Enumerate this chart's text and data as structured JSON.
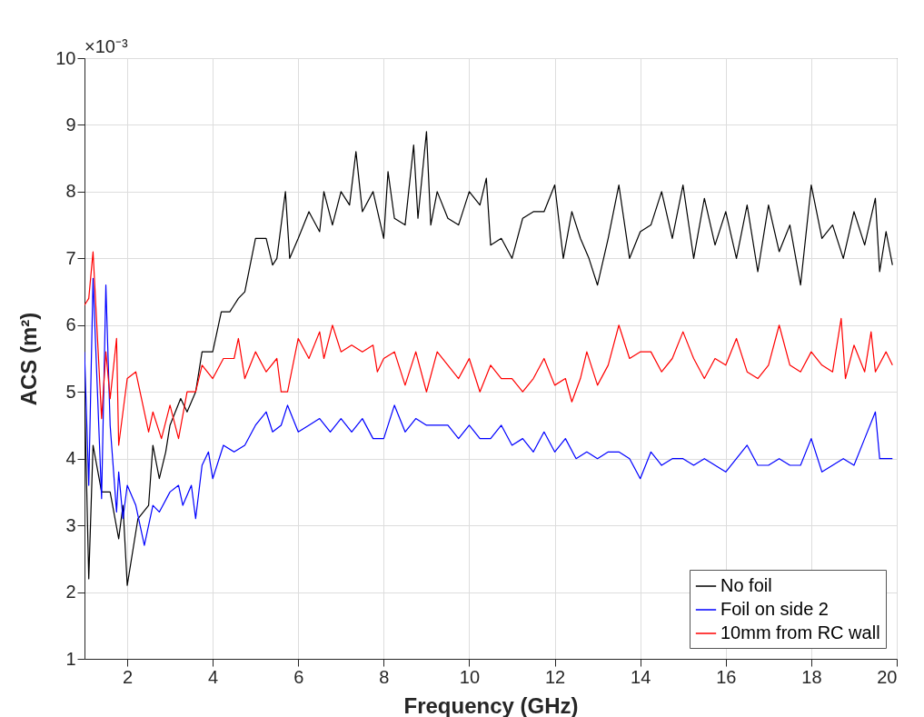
{
  "chart_data": {
    "type": "line",
    "xlabel": "Frequency (GHz)",
    "ylabel": "ACS (m²)",
    "annotations": [
      "×10⁻³"
    ],
    "xlim": [
      1,
      20
    ],
    "xticks": [
      2,
      4,
      6,
      8,
      10,
      12,
      14,
      16,
      18,
      20
    ],
    "ylim": [
      1,
      10
    ],
    "yticks": [
      1,
      2,
      3,
      4,
      5,
      6,
      7,
      8,
      9,
      10
    ],
    "grid": true,
    "legend": "bottom right",
    "line_style": "solid",
    "series": [
      {
        "name": "No foil",
        "color": "#000000",
        "x": [
          1.0,
          1.1,
          1.2,
          1.4,
          1.6,
          1.8,
          1.9,
          2.0,
          2.25,
          2.5,
          2.6,
          2.75,
          2.9,
          3.0,
          3.25,
          3.4,
          3.6,
          3.75,
          4.0,
          4.2,
          4.4,
          4.6,
          4.75,
          5.0,
          5.25,
          5.4,
          5.5,
          5.7,
          5.8,
          6.0,
          6.25,
          6.5,
          6.6,
          6.8,
          7.0,
          7.2,
          7.35,
          7.5,
          7.75,
          8.0,
          8.1,
          8.25,
          8.5,
          8.7,
          8.8,
          9.0,
          9.1,
          9.25,
          9.5,
          9.75,
          10,
          10.25,
          10.4,
          10.5,
          10.75,
          11,
          11.25,
          11.5,
          11.75,
          12,
          12.2,
          12.4,
          12.6,
          12.8,
          13,
          13.25,
          13.5,
          13.75,
          14,
          14.25,
          14.5,
          14.75,
          15,
          15.25,
          15.5,
          15.75,
          16,
          16.25,
          16.5,
          16.75,
          17,
          17.25,
          17.5,
          17.75,
          18,
          18.25,
          18.5,
          18.75,
          19,
          19.25,
          19.5,
          19.6,
          19.75,
          19.9
        ],
        "values": [
          5.0,
          2.2,
          4.2,
          3.5,
          3.5,
          2.8,
          3.3,
          2.1,
          3.1,
          3.3,
          4.2,
          3.7,
          4.1,
          4.5,
          4.9,
          4.7,
          5.0,
          5.6,
          5.6,
          6.2,
          6.2,
          6.4,
          6.5,
          7.3,
          7.3,
          6.9,
          7.0,
          8.0,
          7.0,
          7.3,
          7.7,
          7.4,
          8.0,
          7.5,
          8.0,
          7.8,
          8.6,
          7.7,
          8.0,
          7.3,
          8.3,
          7.6,
          7.5,
          8.7,
          7.6,
          8.9,
          7.5,
          8.0,
          7.6,
          7.5,
          8.0,
          7.8,
          8.2,
          7.2,
          7.3,
          7.0,
          7.6,
          7.7,
          7.7,
          8.1,
          7.0,
          7.7,
          7.3,
          7.0,
          6.6,
          7.3,
          8.1,
          7.0,
          7.4,
          7.5,
          8.0,
          7.3,
          8.1,
          7.0,
          7.9,
          7.2,
          7.7,
          7.0,
          7.8,
          6.8,
          7.8,
          7.1,
          7.5,
          6.6,
          8.1,
          7.3,
          7.5,
          7.0,
          7.7,
          7.2,
          7.9,
          6.8,
          7.4,
          6.9
        ]
      },
      {
        "name": "Foil on side 2",
        "color": "#0000ff",
        "x": [
          1.0,
          1.1,
          1.2,
          1.4,
          1.5,
          1.6,
          1.75,
          1.8,
          1.9,
          2.0,
          2.2,
          2.4,
          2.6,
          2.75,
          3.0,
          3.2,
          3.3,
          3.5,
          3.6,
          3.75,
          3.9,
          4.0,
          4.25,
          4.5,
          4.75,
          5.0,
          5.25,
          5.4,
          5.6,
          5.75,
          6.0,
          6.25,
          6.5,
          6.75,
          7.0,
          7.25,
          7.5,
          7.75,
          8.0,
          8.25,
          8.5,
          8.75,
          9.0,
          9.25,
          9.5,
          9.75,
          10,
          10.25,
          10.5,
          10.75,
          11,
          11.25,
          11.5,
          11.75,
          12,
          12.25,
          12.5,
          12.75,
          13,
          13.25,
          13.5,
          13.75,
          14,
          14.25,
          14.5,
          14.75,
          15,
          15.25,
          15.5,
          15.75,
          16,
          16.25,
          16.5,
          16.75,
          17,
          17.25,
          17.5,
          17.75,
          18,
          18.25,
          18.5,
          18.75,
          19,
          19.25,
          19.5,
          19.6,
          19.75,
          19.9
        ],
        "values": [
          5.6,
          3.6,
          6.7,
          3.4,
          6.6,
          4.5,
          3.2,
          3.8,
          3.1,
          3.6,
          3.3,
          2.7,
          3.3,
          3.2,
          3.5,
          3.6,
          3.3,
          3.6,
          3.1,
          3.9,
          4.1,
          3.7,
          4.2,
          4.1,
          4.2,
          4.5,
          4.7,
          4.4,
          4.5,
          4.8,
          4.4,
          4.5,
          4.6,
          4.4,
          4.6,
          4.4,
          4.6,
          4.3,
          4.3,
          4.8,
          4.4,
          4.6,
          4.5,
          4.5,
          4.5,
          4.3,
          4.5,
          4.3,
          4.3,
          4.5,
          4.2,
          4.3,
          4.1,
          4.4,
          4.1,
          4.3,
          4.0,
          4.1,
          4.0,
          4.1,
          4.1,
          4.0,
          3.7,
          4.1,
          3.9,
          4.0,
          4.0,
          3.9,
          4.0,
          3.9,
          3.8,
          4.0,
          4.2,
          3.9,
          3.9,
          4.0,
          3.9,
          3.9,
          4.3,
          3.8,
          3.9,
          4.0,
          3.9,
          4.3,
          4.7,
          4.0,
          4.0,
          4.0
        ]
      },
      {
        "name": "10mm from RC wall",
        "color": "#ff0000",
        "x": [
          1.0,
          1.1,
          1.2,
          1.4,
          1.5,
          1.6,
          1.75,
          1.8,
          2.0,
          2.2,
          2.5,
          2.6,
          2.8,
          3.0,
          3.2,
          3.4,
          3.6,
          3.75,
          4.0,
          4.25,
          4.5,
          4.6,
          4.75,
          5.0,
          5.25,
          5.5,
          5.6,
          5.75,
          6.0,
          6.25,
          6.5,
          6.6,
          6.8,
          7.0,
          7.25,
          7.5,
          7.75,
          7.85,
          8.0,
          8.25,
          8.5,
          8.75,
          9.0,
          9.25,
          9.5,
          9.75,
          10,
          10.25,
          10.5,
          10.75,
          11,
          11.25,
          11.5,
          11.75,
          12,
          12.25,
          12.4,
          12.6,
          12.75,
          13,
          13.25,
          13.5,
          13.75,
          14,
          14.25,
          14.5,
          14.75,
          15,
          15.25,
          15.5,
          15.75,
          16,
          16.25,
          16.5,
          16.75,
          17,
          17.25,
          17.5,
          17.75,
          18,
          18.25,
          18.5,
          18.7,
          18.8,
          19,
          19.25,
          19.4,
          19.5,
          19.75,
          19.9
        ],
        "values": [
          6.3,
          6.4,
          7.1,
          4.6,
          5.6,
          4.9,
          5.8,
          4.2,
          5.2,
          5.3,
          4.4,
          4.7,
          4.3,
          4.8,
          4.3,
          5.0,
          5.0,
          5.4,
          5.2,
          5.5,
          5.5,
          5.8,
          5.2,
          5.6,
          5.3,
          5.5,
          5.0,
          5.0,
          5.8,
          5.5,
          5.9,
          5.5,
          6.0,
          5.6,
          5.7,
          5.6,
          5.7,
          5.3,
          5.5,
          5.6,
          5.1,
          5.6,
          5.0,
          5.6,
          5.4,
          5.2,
          5.5,
          5.0,
          5.4,
          5.2,
          5.2,
          5.0,
          5.2,
          5.5,
          5.1,
          5.2,
          4.85,
          5.2,
          5.6,
          5.1,
          5.4,
          6.0,
          5.5,
          5.6,
          5.6,
          5.3,
          5.5,
          5.9,
          5.5,
          5.2,
          5.5,
          5.4,
          5.8,
          5.3,
          5.2,
          5.4,
          6.0,
          5.4,
          5.3,
          5.6,
          5.4,
          5.3,
          6.1,
          5.2,
          5.7,
          5.3,
          5.9,
          5.3,
          5.6,
          5.4
        ]
      }
    ]
  }
}
